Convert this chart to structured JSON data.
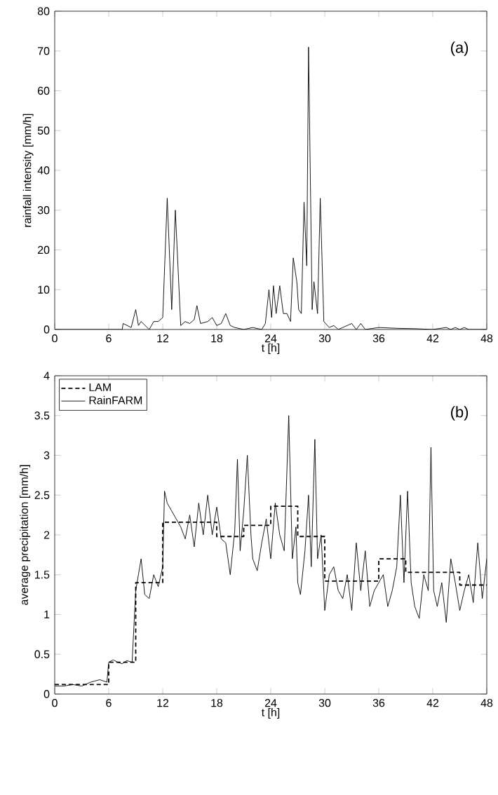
{
  "chart_data": [
    {
      "type": "line",
      "xlabel": "t [h]",
      "ylabel": "rainfall intensity [mm/h]",
      "annotations": [
        "(a)"
      ],
      "xlim": [
        0,
        48
      ],
      "ylim": [
        0,
        80
      ],
      "xticks": [
        0,
        6,
        12,
        18,
        24,
        30,
        36,
        42,
        48
      ],
      "yticks": [
        0,
        10,
        20,
        30,
        40,
        50,
        60,
        70,
        80
      ],
      "line_style": "solid",
      "series": [
        {
          "color": "#000000",
          "x": [
            0,
            7.5,
            7.6,
            8.5,
            9,
            9.3,
            9.6,
            10.5,
            11,
            11.5,
            12,
            12.5,
            13,
            13.4,
            14,
            14.5,
            15,
            15.5,
            15.8,
            16.2,
            17,
            17.5,
            18,
            18.5,
            19,
            19.5,
            20,
            21,
            22,
            23,
            23.4,
            23.8,
            24.1,
            24.3,
            24.6,
            25,
            25.4,
            25.8,
            26.2,
            26.5,
            26.9,
            27.1,
            27.4,
            27.7,
            28,
            28.2,
            28.6,
            28.8,
            29.2,
            29.5,
            29.9,
            30.5,
            31,
            31.5,
            32,
            33,
            33.5,
            34,
            34.5,
            36,
            38,
            40,
            42,
            43.5,
            44,
            44.5,
            45,
            45.5,
            46,
            48
          ],
          "values": [
            0,
            0,
            1.5,
            0.5,
            5,
            1,
            2,
            0,
            2,
            2,
            3,
            33,
            5,
            30,
            1,
            2,
            1.5,
            2.5,
            6,
            1.5,
            2,
            3,
            1,
            1.5,
            4,
            1,
            0.5,
            0,
            0.5,
            0,
            1.5,
            10,
            3,
            11,
            4,
            11,
            4,
            4,
            2,
            18,
            12,
            5,
            4,
            32,
            16,
            71,
            5,
            12,
            4,
            33,
            2,
            0.5,
            1,
            0,
            0.5,
            1.5,
            0,
            1.5,
            0,
            0.5,
            0.3,
            0.2,
            0,
            0.5,
            0,
            0.5,
            0,
            0.5,
            0,
            0
          ]
        }
      ]
    },
    {
      "type": "line",
      "xlabel": "t [h]",
      "ylabel": "average precipitation [mm/h]",
      "annotations": [
        "(b)"
      ],
      "xlim": [
        0,
        48
      ],
      "ylim": [
        0,
        4
      ],
      "xticks": [
        0,
        6,
        12,
        18,
        24,
        30,
        36,
        42,
        48
      ],
      "yticks": [
        0,
        0.5,
        1,
        1.5,
        2,
        2.5,
        3,
        3.5,
        4
      ],
      "legend": "top left",
      "series": [
        {
          "name": "LAM",
          "type": "step",
          "line_style": "dashed",
          "color": "#000000",
          "x": [
            0,
            6,
            9,
            12,
            18,
            21,
            24,
            27,
            30,
            36,
            39,
            45,
            48
          ],
          "values": [
            0.12,
            0.4,
            1.4,
            2.16,
            1.98,
            2.12,
            2.36,
            1.98,
            1.42,
            1.7,
            1.53,
            1.37,
            1.37
          ]
        },
        {
          "name": "RainFARM",
          "type": "line",
          "line_style": "solid",
          "color": "#000000",
          "x": [
            0,
            1,
            2,
            3,
            4,
            5,
            5.8,
            6,
            6.5,
            7,
            7.5,
            8,
            8.6,
            9,
            9.3,
            9.6,
            10,
            10.5,
            11,
            11.5,
            12,
            12.2,
            12.5,
            13,
            13.5,
            14,
            14.5,
            15,
            15.5,
            16,
            16.5,
            17,
            17.5,
            18,
            18.5,
            19,
            19.5,
            20,
            20.3,
            20.6,
            21,
            21.4,
            21.8,
            22,
            22.5,
            23,
            23.5,
            24,
            24.5,
            25,
            25.5,
            26,
            26.4,
            26.8,
            27,
            27.3,
            27.8,
            28.2,
            28.5,
            28.9,
            29.2,
            29.6,
            30,
            30.5,
            31,
            31.5,
            32,
            32.5,
            33,
            33.5,
            34,
            34.5,
            35,
            35.5,
            36,
            36.5,
            37,
            37.5,
            38,
            38.4,
            38.8,
            39.2,
            39.6,
            40,
            40.5,
            41,
            41.5,
            41.8,
            42.1,
            42.5,
            43,
            43.5,
            44,
            44.5,
            45,
            45.5,
            46,
            46.5,
            47,
            47.5,
            48
          ],
          "values": [
            0.1,
            0.1,
            0.12,
            0.1,
            0.15,
            0.18,
            0.15,
            0.4,
            0.43,
            0.4,
            0.38,
            0.42,
            0.4,
            1.3,
            1.5,
            1.7,
            1.25,
            1.2,
            1.5,
            1.35,
            1.6,
            2.55,
            2.4,
            2.3,
            2.2,
            2.1,
            1.95,
            2.25,
            1.85,
            2.4,
            2.0,
            2.5,
            2.0,
            2.35,
            1.95,
            1.9,
            1.5,
            2.05,
            2.95,
            1.8,
            2.3,
            3.0,
            2.0,
            1.7,
            1.55,
            1.9,
            2.2,
            1.7,
            2.4,
            2.0,
            1.8,
            3.5,
            1.7,
            2.1,
            1.4,
            1.25,
            1.8,
            2.5,
            1.6,
            3.2,
            1.7,
            2.0,
            1.05,
            1.5,
            1.6,
            1.3,
            1.2,
            1.5,
            1.05,
            1.9,
            1.3,
            1.8,
            1.1,
            1.3,
            1.4,
            1.5,
            1.1,
            1.3,
            1.6,
            2.5,
            1.4,
            2.55,
            1.4,
            1.1,
            0.95,
            1.5,
            1.3,
            3.1,
            1.3,
            1.1,
            1.4,
            0.9,
            1.7,
            1.4,
            1.05,
            1.3,
            1.5,
            1.15,
            1.9,
            1.2,
            1.7
          ]
        }
      ]
    }
  ]
}
